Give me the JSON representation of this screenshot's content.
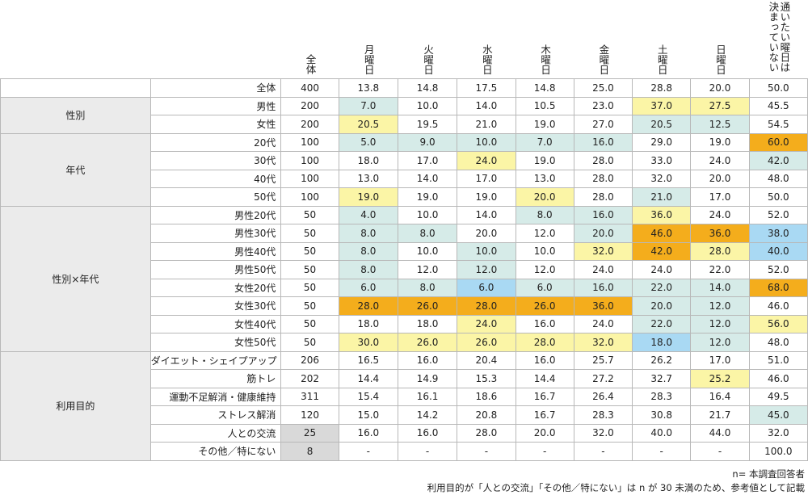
{
  "header": {
    "total": "全体",
    "days": [
      "月曜日",
      "火曜日",
      "水曜日",
      "木曜日",
      "金曜日",
      "土曜日",
      "日曜日",
      "通いたい曜日は決まっていない"
    ]
  },
  "rows": [
    {
      "group": "",
      "label": "全体",
      "n": "400",
      "values": [
        "13.8",
        "14.8",
        "17.5",
        "14.8",
        "25.0",
        "28.8",
        "20.0",
        "50.0"
      ],
      "colors": [
        "",
        "",
        "",
        "",
        "",
        "",
        "",
        ""
      ]
    },
    {
      "group": "性別",
      "label": "男性",
      "n": "200",
      "values": [
        "7.0",
        "10.0",
        "14.0",
        "10.5",
        "23.0",
        "37.0",
        "27.5",
        "45.5"
      ],
      "colors": [
        "teal",
        "",
        "",
        "",
        "",
        "yel",
        "yel",
        ""
      ]
    },
    {
      "group": "性別",
      "label": "女性",
      "n": "200",
      "values": [
        "20.5",
        "19.5",
        "21.0",
        "19.0",
        "27.0",
        "20.5",
        "12.5",
        "54.5"
      ],
      "colors": [
        "yel",
        "",
        "",
        "",
        "",
        "teal",
        "teal",
        ""
      ]
    },
    {
      "group": "年代",
      "label": "20代",
      "n": "100",
      "values": [
        "5.0",
        "9.0",
        "10.0",
        "7.0",
        "16.0",
        "29.0",
        "19.0",
        "60.0"
      ],
      "colors": [
        "teal",
        "teal",
        "teal",
        "teal",
        "teal",
        "",
        "",
        "org"
      ]
    },
    {
      "group": "年代",
      "label": "30代",
      "n": "100",
      "values": [
        "18.0",
        "17.0",
        "24.0",
        "19.0",
        "28.0",
        "33.0",
        "24.0",
        "42.0"
      ],
      "colors": [
        "",
        "",
        "yel",
        "",
        "",
        "",
        "",
        "teal"
      ]
    },
    {
      "group": "年代",
      "label": "40代",
      "n": "100",
      "values": [
        "13.0",
        "14.0",
        "17.0",
        "13.0",
        "28.0",
        "32.0",
        "20.0",
        "48.0"
      ],
      "colors": [
        "",
        "",
        "",
        "",
        "",
        "",
        "",
        ""
      ]
    },
    {
      "group": "年代",
      "label": "50代",
      "n": "100",
      "values": [
        "19.0",
        "19.0",
        "19.0",
        "20.0",
        "28.0",
        "21.0",
        "17.0",
        "50.0"
      ],
      "colors": [
        "yel",
        "",
        "",
        "yel",
        "",
        "teal",
        "",
        ""
      ]
    },
    {
      "group": "性別×年代",
      "label": "男性20代",
      "n": "50",
      "values": [
        "4.0",
        "10.0",
        "14.0",
        "8.0",
        "16.0",
        "36.0",
        "24.0",
        "52.0"
      ],
      "colors": [
        "teal",
        "",
        "",
        "teal",
        "teal",
        "yel",
        "",
        ""
      ]
    },
    {
      "group": "性別×年代",
      "label": "男性30代",
      "n": "50",
      "values": [
        "8.0",
        "8.0",
        "20.0",
        "12.0",
        "20.0",
        "46.0",
        "36.0",
        "38.0"
      ],
      "colors": [
        "teal",
        "teal",
        "",
        "",
        "teal",
        "org",
        "org",
        "blu"
      ]
    },
    {
      "group": "性別×年代",
      "label": "男性40代",
      "n": "50",
      "values": [
        "8.0",
        "10.0",
        "10.0",
        "10.0",
        "32.0",
        "42.0",
        "28.0",
        "40.0"
      ],
      "colors": [
        "teal",
        "",
        "teal",
        "",
        "yel",
        "org",
        "yel",
        "blu"
      ]
    },
    {
      "group": "性別×年代",
      "label": "男性50代",
      "n": "50",
      "values": [
        "8.0",
        "12.0",
        "12.0",
        "12.0",
        "24.0",
        "24.0",
        "22.0",
        "52.0"
      ],
      "colors": [
        "teal",
        "",
        "teal",
        "",
        "",
        "",
        "",
        ""
      ]
    },
    {
      "group": "性別×年代",
      "label": "女性20代",
      "n": "50",
      "values": [
        "6.0",
        "8.0",
        "6.0",
        "6.0",
        "16.0",
        "22.0",
        "14.0",
        "68.0"
      ],
      "colors": [
        "teal",
        "teal",
        "blu",
        "teal",
        "teal",
        "teal",
        "teal",
        "org"
      ]
    },
    {
      "group": "性別×年代",
      "label": "女性30代",
      "n": "50",
      "values": [
        "28.0",
        "26.0",
        "28.0",
        "26.0",
        "36.0",
        "20.0",
        "12.0",
        "46.0"
      ],
      "colors": [
        "org",
        "org",
        "org",
        "org",
        "org",
        "teal",
        "teal",
        ""
      ]
    },
    {
      "group": "性別×年代",
      "label": "女性40代",
      "n": "50",
      "values": [
        "18.0",
        "18.0",
        "24.0",
        "16.0",
        "24.0",
        "22.0",
        "12.0",
        "56.0"
      ],
      "colors": [
        "",
        "",
        "yel",
        "",
        "",
        "teal",
        "teal",
        "yel"
      ]
    },
    {
      "group": "性別×年代",
      "label": "女性50代",
      "n": "50",
      "values": [
        "30.0",
        "26.0",
        "26.0",
        "28.0",
        "32.0",
        "18.0",
        "12.0",
        "48.0"
      ],
      "colors": [
        "yel",
        "yel",
        "yel",
        "yel",
        "yel",
        "blu",
        "teal",
        ""
      ]
    },
    {
      "group": "利用目的",
      "label": "ダイエット・シェイプアップ",
      "n": "206",
      "values": [
        "16.5",
        "16.0",
        "20.4",
        "16.0",
        "25.7",
        "26.2",
        "17.0",
        "51.0"
      ],
      "colors": [
        "",
        "",
        "",
        "",
        "",
        "",
        "",
        ""
      ]
    },
    {
      "group": "利用目的",
      "label": "筋トレ",
      "n": "202",
      "values": [
        "14.4",
        "14.9",
        "15.3",
        "14.4",
        "27.2",
        "32.7",
        "25.2",
        "46.0"
      ],
      "colors": [
        "",
        "",
        "",
        "",
        "",
        "",
        "yel",
        ""
      ]
    },
    {
      "group": "利用目的",
      "label": "運動不足解消・健康維持",
      "n": "311",
      "values": [
        "15.4",
        "16.1",
        "18.6",
        "16.7",
        "26.4",
        "28.3",
        "16.4",
        "49.5"
      ],
      "colors": [
        "",
        "",
        "",
        "",
        "",
        "",
        "",
        ""
      ]
    },
    {
      "group": "利用目的",
      "label": "ストレス解消",
      "n": "120",
      "values": [
        "15.0",
        "14.2",
        "20.8",
        "16.7",
        "28.3",
        "30.8",
        "21.7",
        "45.0"
      ],
      "colors": [
        "",
        "",
        "",
        "",
        "",
        "",
        "",
        "teal"
      ]
    },
    {
      "group": "利用目的",
      "label": "人との交流",
      "n": "25",
      "values": [
        "16.0",
        "16.0",
        "28.0",
        "20.0",
        "32.0",
        "40.0",
        "44.0",
        "32.0"
      ],
      "colors": [
        "",
        "",
        "",
        "",
        "",
        "",
        "",
        ""
      ],
      "gray": true
    },
    {
      "group": "利用目的",
      "label": "その他／特にない",
      "n": "8",
      "values": [
        "-",
        "-",
        "-",
        "-",
        "-",
        "-",
        "-",
        "100.0"
      ],
      "colors": [
        "",
        "",
        "",
        "",
        "",
        "",
        "",
        ""
      ],
      "gray": true
    }
  ],
  "notes": {
    "base": "n= 本調査回答者",
    "footnote": "利用目的が「人との交流」「その他／特にない」は n が 30 未満のため、参考値として記載"
  },
  "colors": {
    "teal": "#d6ebe8",
    "yellow": "#fbf5a6",
    "orange": "#f4ad1c",
    "blue": "#a9d9f3",
    "group_bg": "#ebebeb",
    "small_n_bg": "#d9d9d9"
  }
}
